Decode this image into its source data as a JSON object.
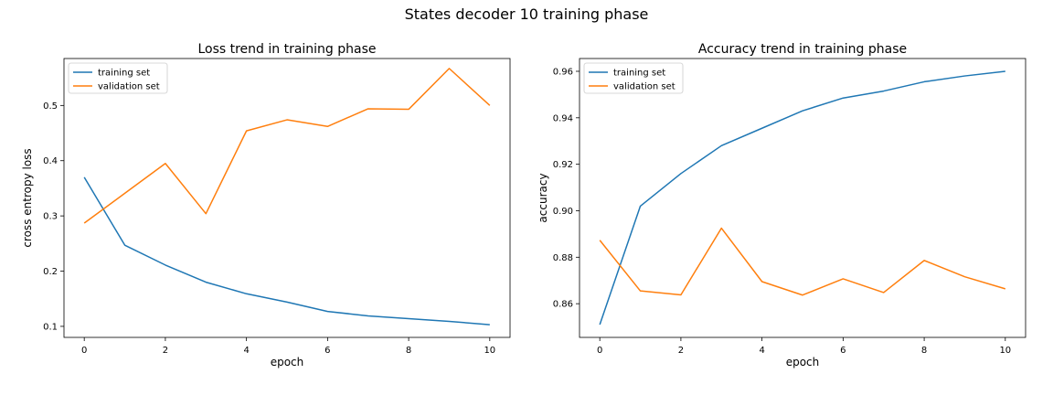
{
  "figure": {
    "suptitle": "States decoder 10 training phase"
  },
  "chart_data": [
    {
      "type": "line",
      "title": "Loss trend in training phase",
      "xlabel": "epoch",
      "ylabel": "cross entropy loss",
      "x": [
        0,
        1,
        2,
        3,
        4,
        5,
        6,
        7,
        8,
        9,
        10
      ],
      "xlim": [
        -0.5,
        10.5
      ],
      "ylim": [
        0.08,
        0.585
      ],
      "xticks": [
        0,
        2,
        4,
        6,
        8,
        10
      ],
      "xtick_labels": [
        "0",
        "2",
        "4",
        "6",
        "8",
        "10"
      ],
      "yticks": [
        0.1,
        0.2,
        0.3,
        0.4,
        0.5
      ],
      "ytick_labels": [
        "0.1",
        "0.2",
        "0.3",
        "0.4",
        "0.5"
      ],
      "grid": false,
      "legend_position": "upper-left",
      "series": [
        {
          "name": "training set",
          "color": "#1f77b4",
          "values": [
            0.37,
            0.247,
            0.211,
            0.18,
            0.159,
            0.144,
            0.127,
            0.119,
            0.114,
            0.109,
            0.103
          ]
        },
        {
          "name": "validation set",
          "color": "#ff7f0e",
          "values": [
            0.287,
            0.341,
            0.395,
            0.304,
            0.454,
            0.474,
            0.462,
            0.494,
            0.493,
            0.567,
            0.5
          ]
        }
      ]
    },
    {
      "type": "line",
      "title": "Accuracy trend in training phase",
      "xlabel": "epoch",
      "ylabel": "accuracy",
      "x": [
        0,
        1,
        2,
        3,
        4,
        5,
        6,
        7,
        8,
        9,
        10
      ],
      "xlim": [
        -0.5,
        10.5
      ],
      "ylim": [
        0.8455,
        0.9655
      ],
      "xticks": [
        0,
        2,
        4,
        6,
        8,
        10
      ],
      "xtick_labels": [
        "0",
        "2",
        "4",
        "6",
        "8",
        "10"
      ],
      "yticks": [
        0.86,
        0.88,
        0.9,
        0.92,
        0.94,
        0.96
      ],
      "ytick_labels": [
        "0.86",
        "0.88",
        "0.90",
        "0.92",
        "0.94",
        "0.96"
      ],
      "grid": false,
      "legend_position": "upper-left",
      "series": [
        {
          "name": "training set",
          "color": "#1f77b4",
          "values": [
            0.851,
            0.902,
            0.916,
            0.928,
            0.9355,
            0.943,
            0.9485,
            0.9515,
            0.9555,
            0.958,
            0.96
          ]
        },
        {
          "name": "validation set",
          "color": "#ff7f0e",
          "values": [
            0.8873,
            0.8655,
            0.8638,
            0.8925,
            0.8695,
            0.8637,
            0.8707,
            0.8648,
            0.8786,
            0.8716,
            0.8664
          ]
        }
      ]
    }
  ]
}
